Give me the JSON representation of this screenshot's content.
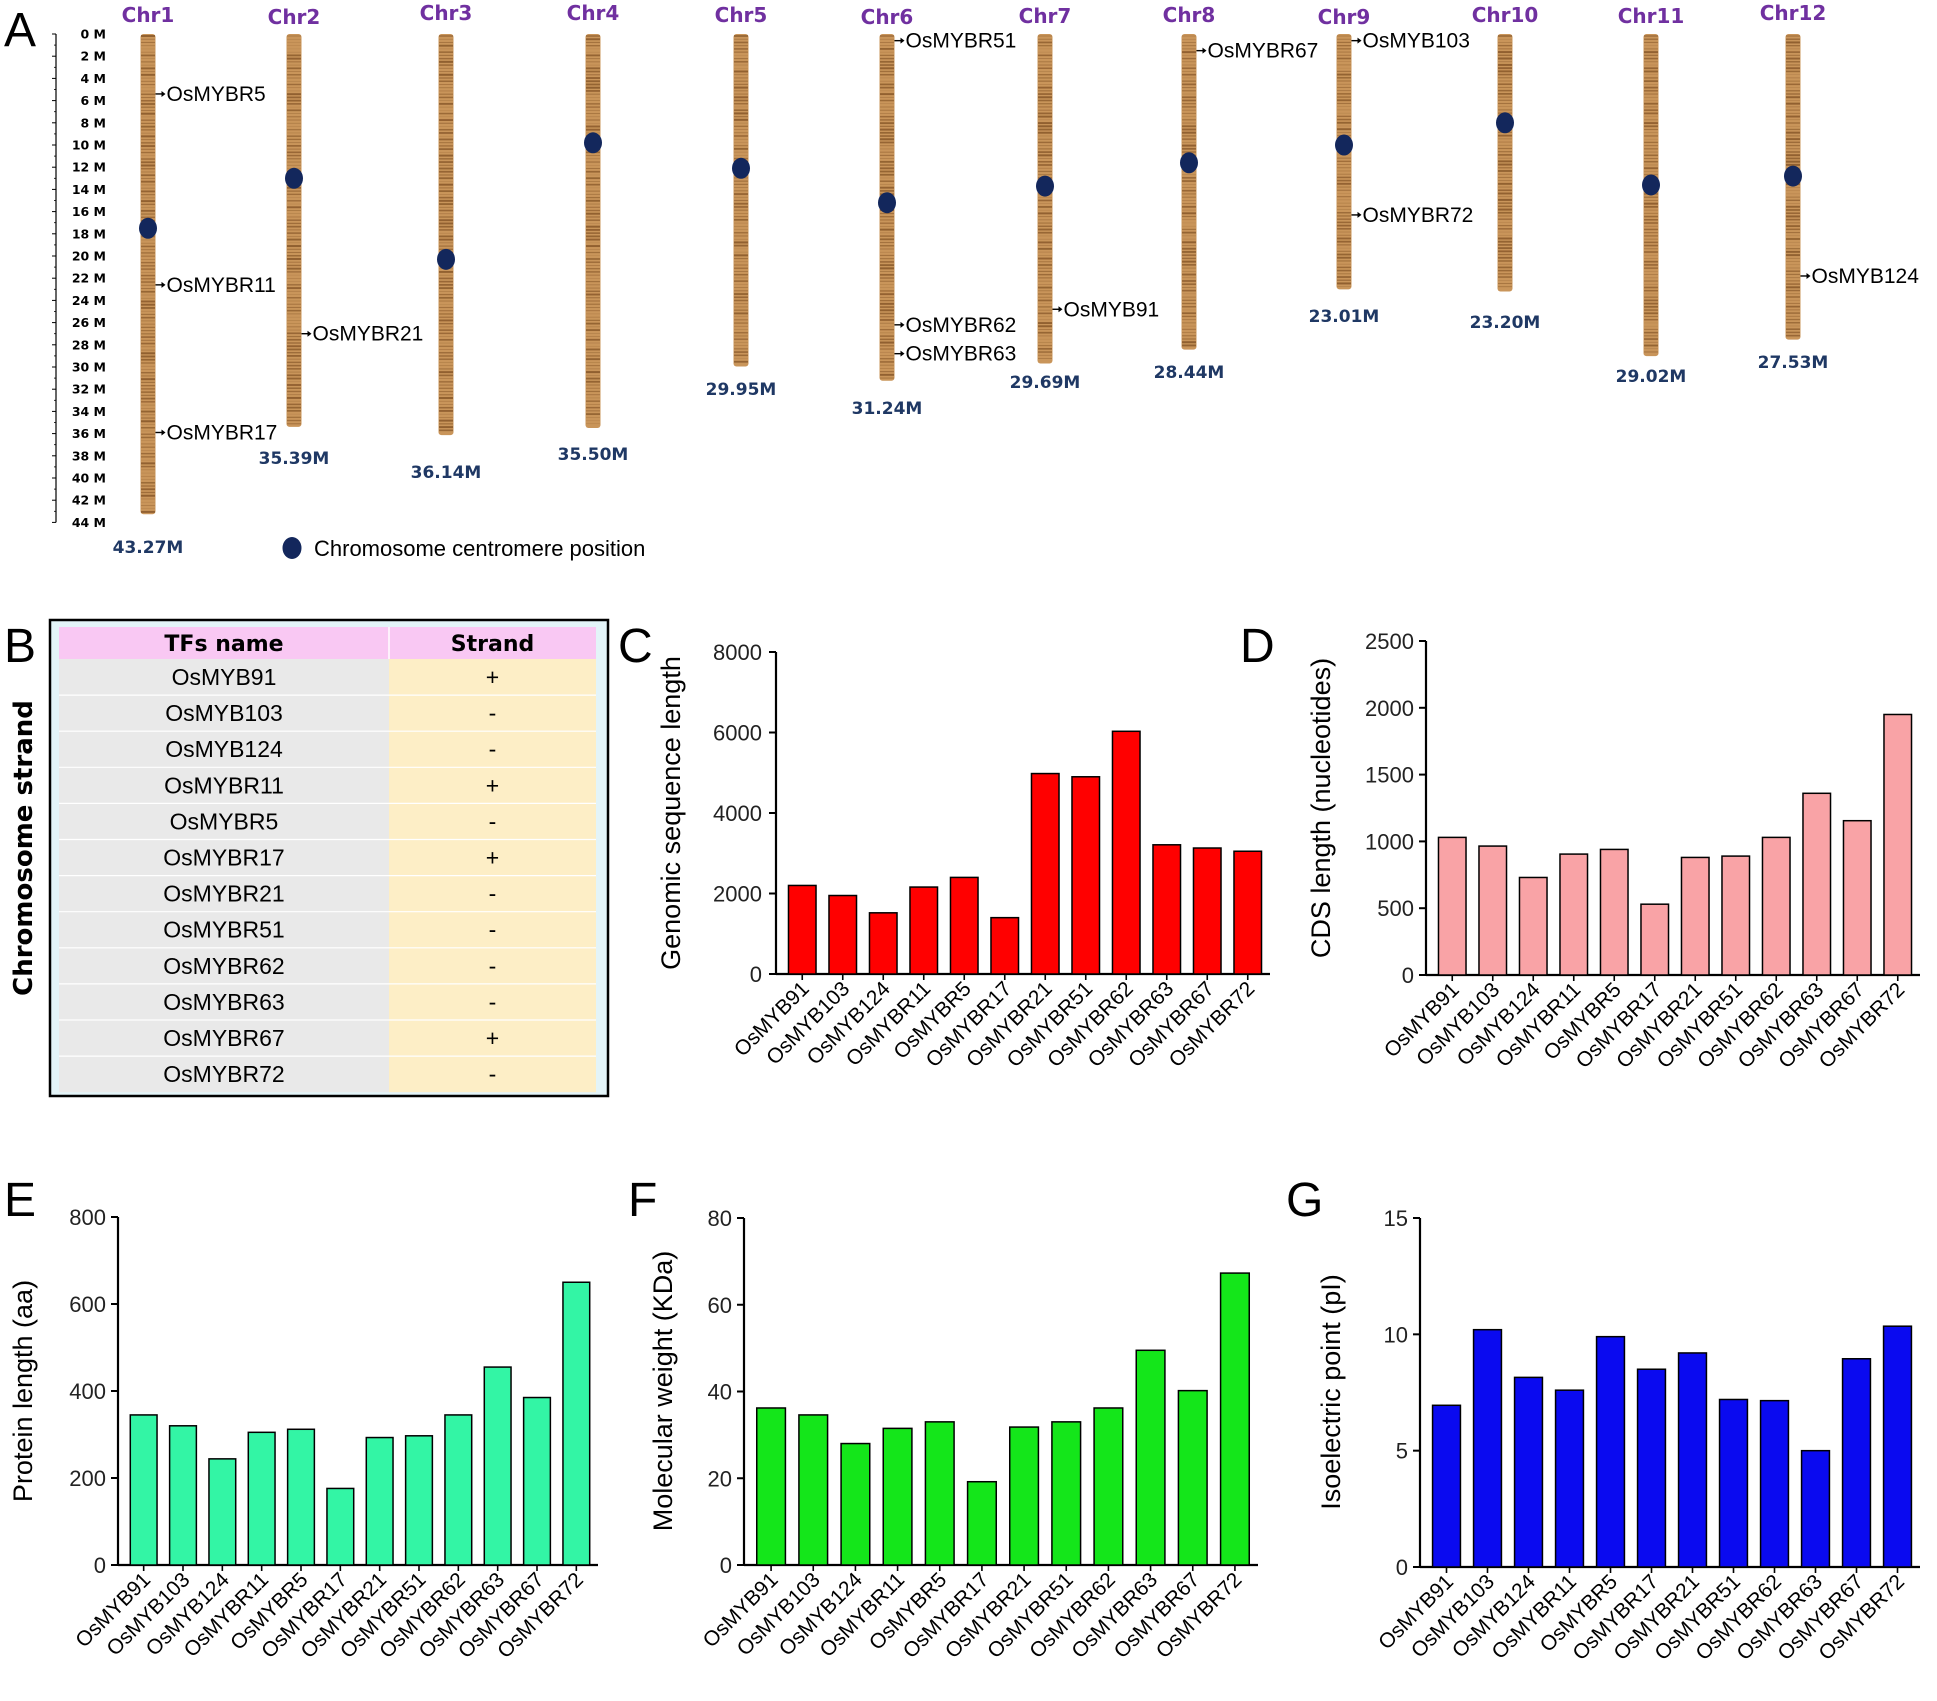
{
  "panels": {
    "A": "A",
    "B": "B",
    "C": "C",
    "D": "D",
    "E": "E",
    "F": "F",
    "G": "G"
  },
  "colors": {
    "chromosome": "#c9955a",
    "chromosome_band": "#8a5a2b",
    "centromere": "#13275c",
    "chr_name": "#7030a0",
    "chr_len": "#1f3864",
    "table_header": "#f9c8f3",
    "table_name_col": "#e9e9e9",
    "table_strand_col": "#fdeec6",
    "table_bg": "#e3f4f8",
    "bar_C": "#ff0000",
    "bar_D": "#f9a3a6",
    "bar_E": "#33f5a5",
    "bar_F": "#14e61a",
    "bar_G": "#0a0af0"
  },
  "chromosome_map": {
    "scale_labels": [
      "0 M",
      "2 M",
      "4 M",
      "6 M",
      "8 M",
      "10 M",
      "12 M",
      "14 M",
      "16 M",
      "18 M",
      "20 M",
      "22 M",
      "24 M",
      "26 M",
      "28 M",
      "30 M",
      "32 M",
      "34 M",
      "36 M",
      "38 M",
      "40 M",
      "42 M",
      "44 M"
    ],
    "chromosomes": [
      {
        "name": "Chr1",
        "length_label": "43.27M",
        "length_mb": 43.27,
        "centromere_mb": 17.5,
        "genes": [
          {
            "name": "OsMYBR5",
            "pos_mb": 5.4
          },
          {
            "name": "OsMYBR11",
            "pos_mb": 22.6
          },
          {
            "name": "OsMYBR17",
            "pos_mb": 35.9
          }
        ]
      },
      {
        "name": "Chr2",
        "length_label": "35.39M",
        "length_mb": 35.39,
        "centromere_mb": 13.0,
        "genes": [
          {
            "name": "OsMYBR21",
            "pos_mb": 27.0
          }
        ]
      },
      {
        "name": "Chr3",
        "length_label": "36.14M",
        "length_mb": 36.14,
        "centromere_mb": 20.3,
        "genes": []
      },
      {
        "name": "Chr4",
        "length_label": "35.50M",
        "length_mb": 35.5,
        "centromere_mb": 9.8,
        "genes": []
      },
      {
        "name": "Chr5",
        "length_label": "29.95M",
        "length_mb": 29.95,
        "centromere_mb": 12.1,
        "genes": []
      },
      {
        "name": "Chr6",
        "length_label": "31.24M",
        "length_mb": 31.24,
        "centromere_mb": 15.2,
        "genes": [
          {
            "name": "OsMYBR51",
            "pos_mb": 0.6
          },
          {
            "name": "OsMYBR62",
            "pos_mb": 26.2
          },
          {
            "name": "OsMYBR63",
            "pos_mb": 28.8
          }
        ]
      },
      {
        "name": "Chr7",
        "length_label": "29.69M",
        "length_mb": 29.69,
        "centromere_mb": 13.7,
        "genes": [
          {
            "name": "OsMYB91",
            "pos_mb": 24.8
          }
        ]
      },
      {
        "name": "Chr8",
        "length_label": "28.44M",
        "length_mb": 28.44,
        "centromere_mb": 11.6,
        "genes": [
          {
            "name": "OsMYBR67",
            "pos_mb": 1.5
          }
        ]
      },
      {
        "name": "Chr9",
        "length_label": "23.01M",
        "length_mb": 23.01,
        "centromere_mb": 10.0,
        "genes": [
          {
            "name": "OsMYB103",
            "pos_mb": 0.6
          },
          {
            "name": "OsMYBR72",
            "pos_mb": 16.3
          }
        ]
      },
      {
        "name": "Chr10",
        "length_label": "23.20M",
        "length_mb": 23.2,
        "centromere_mb": 8.0,
        "genes": []
      },
      {
        "name": "Chr11",
        "length_label": "29.02M",
        "length_mb": 29.02,
        "centromere_mb": 13.6,
        "genes": []
      },
      {
        "name": "Chr12",
        "length_label": "27.53M",
        "length_mb": 27.53,
        "centromere_mb": 12.8,
        "genes": [
          {
            "name": "OsMYB124",
            "pos_mb": 21.8
          }
        ]
      }
    ],
    "legend": "Chromosome centromere position"
  },
  "strand_table": {
    "side_title": "Chromosome strand",
    "headers": [
      "TFs name",
      "Strand"
    ],
    "rows": [
      [
        "OsMYB91",
        "+"
      ],
      [
        "OsMYB103",
        "-"
      ],
      [
        "OsMYB124",
        "-"
      ],
      [
        "OsMYBR11",
        "+"
      ],
      [
        "OsMYBR5",
        "-"
      ],
      [
        "OsMYBR17",
        "+"
      ],
      [
        "OsMYBR21",
        "-"
      ],
      [
        "OsMYBR51",
        "-"
      ],
      [
        "OsMYBR62",
        "-"
      ],
      [
        "OsMYBR63",
        "-"
      ],
      [
        "OsMYBR67",
        "+"
      ],
      [
        "OsMYBR72",
        "-"
      ]
    ]
  },
  "chart_data": [
    {
      "panel": "C",
      "type": "bar",
      "ylabel": "Genomic sequence length",
      "xlabel": "",
      "ylim": [
        0,
        8000
      ],
      "yticks": [
        "0",
        "2000",
        "4000",
        "6000",
        "8000"
      ],
      "categories": [
        "OsMYB91",
        "OsMYB103",
        "OsMYB124",
        "OsMYBR11",
        "OsMYBR5",
        "OsMYBR17",
        "OsMYBR21",
        "OsMYBR51",
        "OsMYBR62",
        "OsMYBR63",
        "OsMYBR67",
        "OsMYBR72"
      ],
      "values": [
        2200,
        1950,
        1520,
        2160,
        2400,
        1400,
        4980,
        4900,
        6030,
        3210,
        3130,
        3050
      ]
    },
    {
      "panel": "D",
      "type": "bar",
      "ylabel": "CDS length (nucleotides)",
      "xlabel": "",
      "ylim": [
        0,
        2500
      ],
      "yticks": [
        "0",
        "500",
        "1000",
        "1500",
        "2000",
        "2500"
      ],
      "categories": [
        "OsMYB91",
        "OsMYB103",
        "OsMYB124",
        "OsMYBR11",
        "OsMYBR5",
        "OsMYBR17",
        "OsMYBR21",
        "OsMYBR51",
        "OsMYBR62",
        "OsMYBR63",
        "OsMYBR67",
        "OsMYBR72"
      ],
      "values": [
        1030,
        965,
        730,
        905,
        940,
        530,
        880,
        890,
        1030,
        1360,
        1155,
        1950
      ]
    },
    {
      "panel": "E",
      "type": "bar",
      "ylabel": "Protein length (aa)",
      "xlabel": "",
      "ylim": [
        0,
        800
      ],
      "yticks": [
        "0",
        "200",
        "400",
        "600",
        "800"
      ],
      "categories": [
        "OsMYB91",
        "OsMYB103",
        "OsMYB124",
        "OsMYBR11",
        "OsMYBR5",
        "OsMYBR17",
        "OsMYBR21",
        "OsMYBR51",
        "OsMYBR62",
        "OsMYBR63",
        "OsMYBR67",
        "OsMYBR72"
      ],
      "values": [
        345,
        320,
        244,
        305,
        312,
        176,
        293,
        297,
        345,
        455,
        385,
        650
      ]
    },
    {
      "panel": "F",
      "type": "bar",
      "ylabel": "Molecular weight (KDa)",
      "xlabel": "",
      "ylim": [
        0,
        80
      ],
      "yticks": [
        "0",
        "20",
        "40",
        "60",
        "80"
      ],
      "categories": [
        "OsMYB91",
        "OsMYB103",
        "OsMYB124",
        "OsMYBR11",
        "OsMYBR5",
        "OsMYBR17",
        "OsMYBR21",
        "OsMYBR51",
        "OsMYBR62",
        "OsMYBR63",
        "OsMYBR67",
        "OsMYBR72"
      ],
      "values": [
        36.2,
        34.6,
        28.0,
        31.5,
        33.0,
        19.2,
        31.8,
        33.0,
        36.2,
        49.5,
        40.2,
        67.3
      ]
    },
    {
      "panel": "G",
      "type": "bar",
      "ylabel": "Isoelectric point (pI)",
      "xlabel": "",
      "ylim": [
        0,
        15
      ],
      "yticks": [
        "0",
        "5",
        "10",
        "15"
      ],
      "categories": [
        "OsMYB91",
        "OsMYB103",
        "OsMYB124",
        "OsMYBR11",
        "OsMYBR5",
        "OsMYBR17",
        "OsMYBR21",
        "OsMYBR51",
        "OsMYBR62",
        "OsMYBR63",
        "OsMYBR67",
        "OsMYBR72"
      ],
      "values": [
        6.95,
        10.2,
        8.15,
        7.6,
        9.9,
        8.5,
        9.2,
        7.2,
        7.15,
        5.0,
        8.95,
        10.35
      ]
    }
  ]
}
